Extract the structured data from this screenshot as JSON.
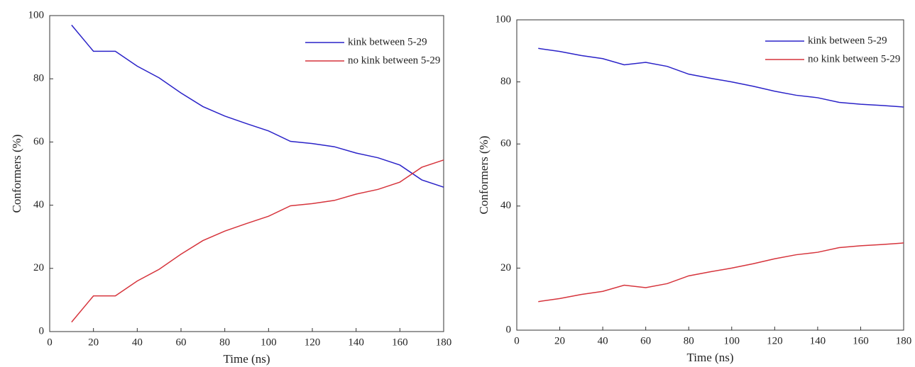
{
  "chart_data": [
    {
      "type": "line",
      "xlabel": "Time (ns)",
      "ylabel": "Conformers (%)",
      "x": [
        10,
        20,
        30,
        40,
        50,
        60,
        70,
        80,
        90,
        100,
        110,
        120,
        130,
        140,
        150,
        160,
        170,
        180
      ],
      "series": [
        {
          "name": "kink between 5-29",
          "color": "#2a22c8",
          "values": [
            97,
            88.7,
            88.7,
            84,
            80.3,
            75.5,
            71.2,
            68.2,
            65.8,
            63.5,
            60.2,
            59.5,
            58.5,
            56.5,
            55,
            52.7,
            48,
            45.7
          ]
        },
        {
          "name": "no kink between 5-29",
          "color": "#d6343c",
          "values": [
            3,
            11.3,
            11.3,
            16,
            19.7,
            24.5,
            28.8,
            31.8,
            34.2,
            36.5,
            39.8,
            40.5,
            41.5,
            43.5,
            45,
            47.3,
            52,
            54.3
          ]
        }
      ],
      "xlim": [
        0,
        180
      ],
      "xticks": [
        0,
        20,
        40,
        60,
        80,
        100,
        120,
        140,
        160,
        180
      ],
      "ylim": [
        0,
        100
      ],
      "yticks": [
        0,
        20,
        40,
        60,
        80,
        100
      ],
      "legend": "upper right"
    },
    {
      "type": "line",
      "xlabel": "Time (ns)",
      "ylabel": "Conformers (%)",
      "x": [
        10,
        20,
        30,
        40,
        50,
        60,
        70,
        80,
        90,
        100,
        110,
        120,
        130,
        140,
        150,
        160,
        170,
        180
      ],
      "series": [
        {
          "name": "kink between 5-29",
          "color": "#2a22c8",
          "values": [
            90.8,
            89.8,
            88.5,
            87.5,
            85.5,
            86.3,
            85,
            82.5,
            81.2,
            80,
            78.6,
            77,
            75.7,
            74.9,
            73.4,
            72.8,
            72.4,
            71.9
          ]
        },
        {
          "name": "no kink between 5-29",
          "color": "#d6343c",
          "values": [
            9.2,
            10.2,
            11.5,
            12.5,
            14.5,
            13.7,
            15,
            17.5,
            18.8,
            20,
            21.4,
            23,
            24.3,
            25.1,
            26.6,
            27.2,
            27.6,
            28.1
          ]
        }
      ],
      "xlim": [
        0,
        180
      ],
      "xticks": [
        0,
        20,
        40,
        60,
        80,
        100,
        120,
        140,
        160,
        180
      ],
      "ylim": [
        0,
        100
      ],
      "yticks": [
        0,
        20,
        40,
        60,
        80,
        100
      ],
      "legend": "upper right"
    }
  ]
}
